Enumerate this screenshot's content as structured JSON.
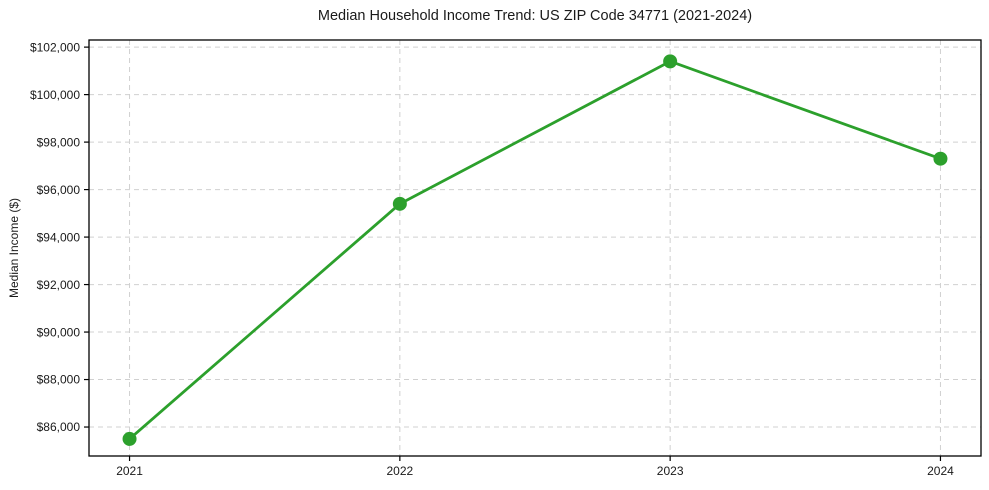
{
  "chart_data": {
    "type": "line",
    "title": "Median Household Income Trend: US ZIP Code 34771 (2021-2024)",
    "xlabel": "",
    "ylabel": "Median Income ($)",
    "x": [
      2021,
      2022,
      2023,
      2024
    ],
    "series": [
      {
        "name": "Median Household Income",
        "values": [
          85500,
          95400,
          101400,
          97300
        ]
      }
    ],
    "xticks": {
      "values": [
        2021,
        2022,
        2023,
        2024
      ],
      "labels": [
        "2021",
        "2022",
        "2023",
        "2024"
      ]
    },
    "yticks": {
      "values": [
        86000,
        88000,
        90000,
        92000,
        94000,
        96000,
        98000,
        100000,
        102000
      ],
      "labels": [
        "$86,000",
        "$88,000",
        "$90,000",
        "$92,000",
        "$94,000",
        "$96,000",
        "$98,000",
        "$100,000",
        "$102,000"
      ]
    },
    "xlim": [
      2020.85,
      2024.15
    ],
    "ylim": [
      84780,
      102300
    ],
    "grid": true,
    "grid_style": "dashed",
    "legend": false,
    "colors": {
      "line": "#2ca02c",
      "marker": "#2ca02c",
      "grid": "#d0d0d0",
      "axis": "#000000",
      "text": "#1a1a1a",
      "background": "#ffffff"
    }
  }
}
